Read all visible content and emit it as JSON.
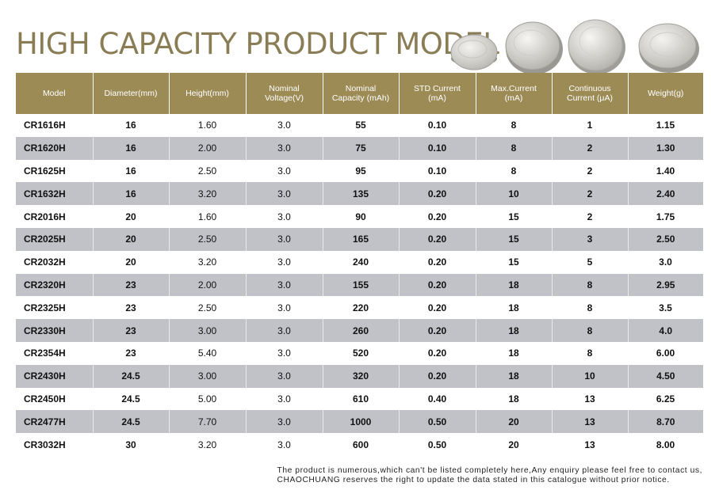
{
  "title": "HIGH CAPACITY PRODUCT MODEL",
  "coins": [
    {
      "icon": "coin-battery-icon",
      "face": "#d6d4d0",
      "rim": "#a3a19c"
    },
    {
      "icon": "coin-battery-icon",
      "face": "#dddbd6",
      "rim": "#9e9c97"
    },
    {
      "icon": "coin-battery-icon",
      "face": "#e3e1dc",
      "rim": "#a9a7a2"
    },
    {
      "icon": "coin-battery-icon",
      "face": "#e0dedb",
      "rim": "#a4a29d"
    }
  ],
  "table": {
    "headers": [
      [
        "Model"
      ],
      [
        "Diameter(mm)"
      ],
      [
        "Height(mm)"
      ],
      [
        "Nominal",
        "Voltage(V)"
      ],
      [
        "Nominal",
        "Capacity (mAh)"
      ],
      [
        "STD Current",
        "(mA)"
      ],
      [
        "Max.Current",
        "(mA)"
      ],
      [
        "Continuous",
        "Current (μA)"
      ],
      [
        "Weight(g)"
      ]
    ],
    "rows": [
      [
        "CR1616H",
        "16",
        "1.60",
        "3.0",
        "55",
        "0.10",
        "8",
        "1",
        "1.15"
      ],
      [
        "CR1620H",
        "16",
        "2.00",
        "3.0",
        "75",
        "0.10",
        "8",
        "2",
        "1.30"
      ],
      [
        "CR1625H",
        "16",
        "2.50",
        "3.0",
        "95",
        "0.10",
        "8",
        "2",
        "1.40"
      ],
      [
        "CR1632H",
        "16",
        "3.20",
        "3.0",
        "135",
        "0.20",
        "10",
        "2",
        "2.40"
      ],
      [
        "CR2016H",
        "20",
        "1.60",
        "3.0",
        "90",
        "0.20",
        "15",
        "2",
        "1.75"
      ],
      [
        "CR2025H",
        "20",
        "2.50",
        "3.0",
        "165",
        "0.20",
        "15",
        "3",
        "2.50"
      ],
      [
        "CR2032H",
        "20",
        "3.20",
        "3.0",
        "240",
        "0.20",
        "15",
        "5",
        "3.0"
      ],
      [
        "CR2320H",
        "23",
        "2.00",
        "3.0",
        "155",
        "0.20",
        "18",
        "8",
        "2.95"
      ],
      [
        "CR2325H",
        "23",
        "2.50",
        "3.0",
        "220",
        "0.20",
        "18",
        "8",
        "3.5"
      ],
      [
        "CR2330H",
        "23",
        "3.00",
        "3.0",
        "260",
        "0.20",
        "18",
        "8",
        "4.0"
      ],
      [
        "CR2354H",
        "23",
        "5.40",
        "3.0",
        "520",
        "0.20",
        "18",
        "8",
        "6.00"
      ],
      [
        "CR2430H",
        "24.5",
        "3.00",
        "3.0",
        "320",
        "0.20",
        "18",
        "10",
        "4.50"
      ],
      [
        "CR2450H",
        "24.5",
        "5.00",
        "3.0",
        "610",
        "0.40",
        "18",
        "13",
        "6.25"
      ],
      [
        "CR2477H",
        "24.5",
        "7.70",
        "3.0",
        "1000",
        "0.50",
        "20",
        "13",
        "8.70"
      ],
      [
        "CR3032H",
        "30",
        "3.20",
        "3.0",
        "600",
        "0.50",
        "20",
        "13",
        "8.00"
      ]
    ]
  },
  "footnote": [
    "The product is numerous,which can't be listed completely here,Any enquiry please feel free to contact us,",
    "CHAOCHUANG reserves the right to update the data stated in this catalogue without prior notice."
  ],
  "colors": {
    "title": "#8a7d55",
    "header_bg": "#9d8b56",
    "alt_row_bg": "#c1c2c7"
  }
}
